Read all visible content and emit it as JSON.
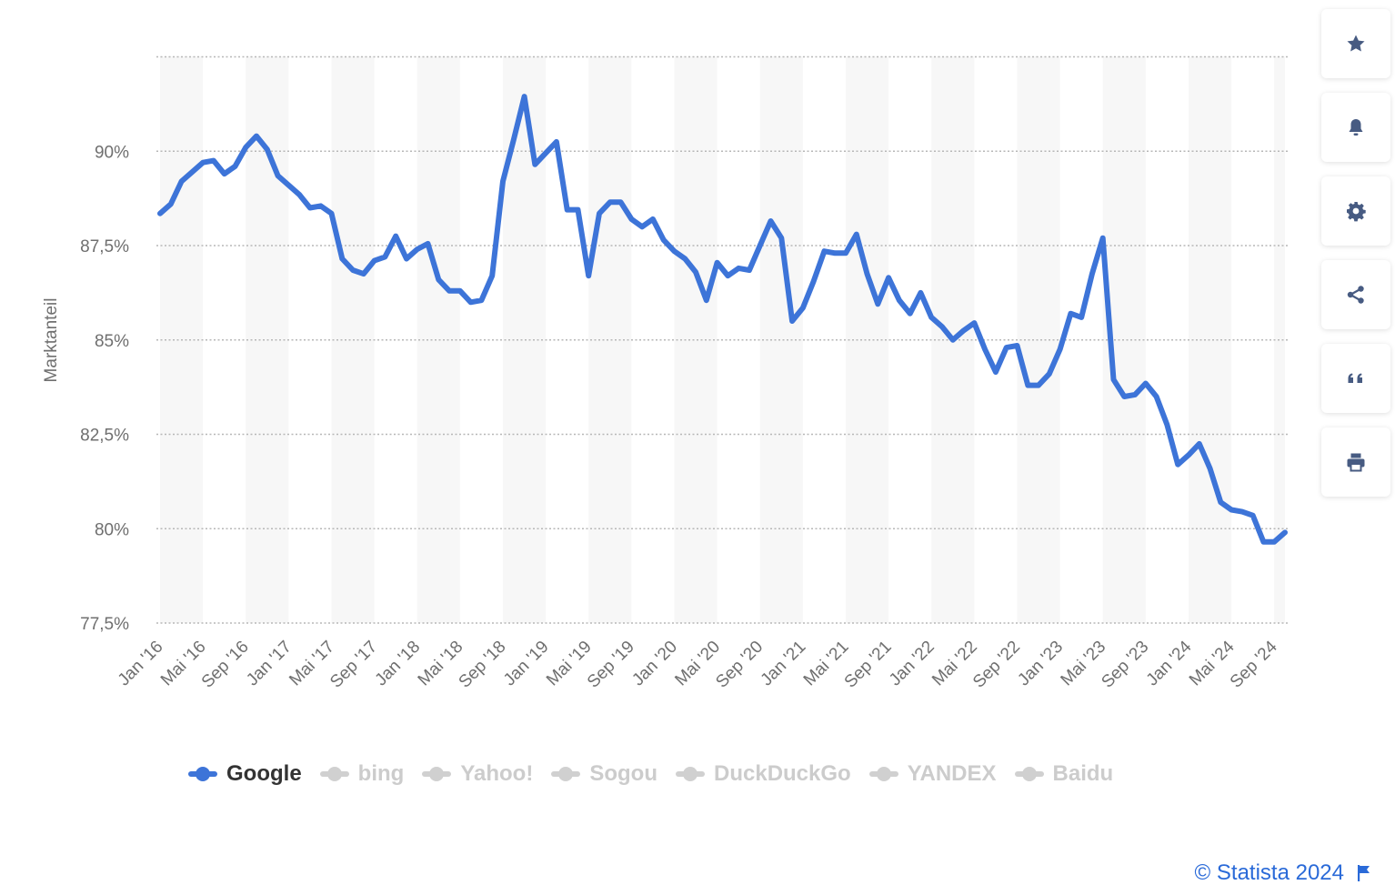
{
  "chart_data": {
    "type": "line",
    "ylabel": "Marktanteil",
    "ylim": [
      77.5,
      92.5
    ],
    "yticks": [
      77.5,
      80,
      82.5,
      85,
      87.5,
      90
    ],
    "ytick_labels": [
      "77,5%",
      "80%",
      "82,5%",
      "85%",
      "87,5%",
      "90%"
    ],
    "xtick_labels": [
      "Jan '16",
      "Mai '16",
      "Sep '16",
      "Jan '17",
      "Mai '17",
      "Sep '17",
      "Jan '18",
      "Mai '18",
      "Sep '18",
      "Jan '19",
      "Mai '19",
      "Sep '19",
      "Jan '20",
      "Mai '20",
      "Sep '20",
      "Jan '21",
      "Mai '21",
      "Sep '21",
      "Jan '22",
      "Mai '22",
      "Sep '22",
      "Jan '23",
      "Mai '23",
      "Sep '23",
      "Jan '24",
      "Mai '24",
      "Sep '24"
    ],
    "start": "2016-01",
    "grid": "horizontal dotted, alternating vertical bands",
    "series": [
      {
        "name": "Google",
        "color": "#3d74d8",
        "values": [
          88.35,
          88.6,
          89.2,
          89.45,
          89.7,
          89.75,
          89.4,
          89.6,
          90.1,
          90.4,
          90.05,
          89.35,
          89.1,
          88.85,
          88.5,
          88.55,
          88.35,
          87.15,
          86.85,
          86.75,
          87.1,
          87.2,
          87.75,
          87.15,
          87.4,
          87.55,
          86.6,
          86.3,
          86.3,
          86.0,
          86.05,
          86.7,
          89.2,
          90.3,
          91.45,
          89.65,
          89.95,
          90.25,
          88.45,
          88.45,
          86.7,
          88.35,
          88.65,
          88.65,
          88.2,
          88.0,
          88.2,
          87.65,
          87.35,
          87.15,
          86.8,
          86.05,
          87.05,
          86.7,
          86.9,
          86.85,
          87.5,
          88.15,
          87.7,
          85.5,
          85.85,
          86.55,
          87.35,
          87.3,
          87.3,
          87.8,
          86.75,
          85.95,
          86.65,
          86.05,
          85.7,
          86.25,
          85.6,
          85.35,
          85.0,
          85.25,
          85.45,
          84.75,
          84.15,
          84.8,
          84.85,
          83.8,
          83.8,
          84.1,
          84.75,
          85.7,
          85.6,
          86.75,
          87.7,
          83.95,
          83.5,
          83.55,
          83.85,
          83.5,
          82.75,
          81.7,
          81.95,
          82.25,
          81.6,
          80.7,
          80.5,
          80.45,
          80.35,
          79.65,
          79.65,
          79.9
        ]
      }
    ]
  },
  "legend": [
    {
      "label": "Google",
      "color": "#3d74d8",
      "active": true
    },
    {
      "label": "bing",
      "color": "#d0d0d0",
      "active": false
    },
    {
      "label": "Yahoo!",
      "color": "#d0d0d0",
      "active": false
    },
    {
      "label": "Sogou",
      "color": "#d0d0d0",
      "active": false
    },
    {
      "label": "DuckDuckGo",
      "color": "#d0d0d0",
      "active": false
    },
    {
      "label": "YANDEX",
      "color": "#d0d0d0",
      "active": false
    },
    {
      "label": "Baidu",
      "color": "#d0d0d0",
      "active": false
    }
  ],
  "toolbar": [
    "star-icon",
    "bell-icon",
    "gear-icon",
    "share-icon",
    "quote-icon",
    "print-icon"
  ],
  "footer": {
    "copyright": "© Statista 2024"
  }
}
